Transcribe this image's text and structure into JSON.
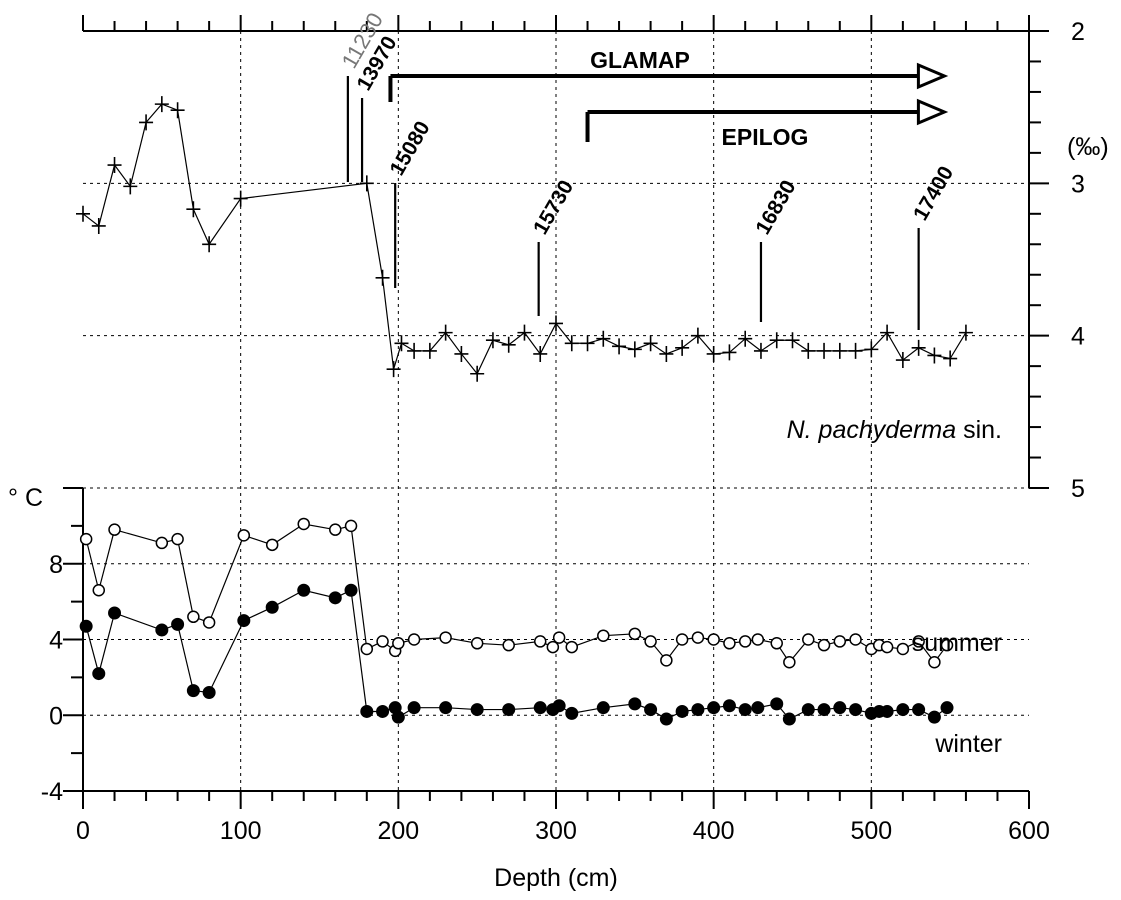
{
  "chart_data": {
    "type": "line",
    "x_axis": {
      "label": "Depth (cm)",
      "range": [
        0,
        600
      ],
      "ticks": [
        0,
        100,
        200,
        300,
        400,
        500,
        600
      ]
    },
    "right_axis": {
      "unit": "(‰)",
      "range": [
        2,
        5
      ],
      "reversed": true,
      "ticks": [
        2,
        3,
        4,
        5
      ]
    },
    "left_axis": {
      "unit": "° C",
      "range": [
        -4,
        12
      ],
      "ticks": [
        -4,
        0,
        4,
        8
      ]
    },
    "grid": true,
    "series": [
      {
        "name": "N. pachyderma sin.",
        "name_italic": "N. pachyderma",
        "name_suffix": " sin.",
        "axis": "right",
        "marker": "plus",
        "points": [
          [
            0,
            3.2
          ],
          [
            10,
            3.28
          ],
          [
            20,
            2.88
          ],
          [
            30,
            3.02
          ],
          [
            40,
            2.6
          ],
          [
            50,
            2.48
          ],
          [
            60,
            2.52
          ],
          [
            70,
            3.17
          ],
          [
            80,
            3.4
          ],
          [
            100,
            3.1
          ],
          [
            180,
            3.0
          ],
          [
            190,
            3.62
          ],
          [
            197,
            4.22
          ],
          [
            202,
            4.05
          ],
          [
            210,
            4.1
          ],
          [
            220,
            4.1
          ],
          [
            230,
            3.98
          ],
          [
            240,
            4.12
          ],
          [
            250,
            4.25
          ],
          [
            260,
            4.03
          ],
          [
            270,
            4.06
          ],
          [
            280,
            3.98
          ],
          [
            290,
            4.12
          ],
          [
            300,
            3.92
          ],
          [
            310,
            4.05
          ],
          [
            320,
            4.05
          ],
          [
            330,
            4.02
          ],
          [
            340,
            4.07
          ],
          [
            350,
            4.09
          ],
          [
            360,
            4.05
          ],
          [
            370,
            4.12
          ],
          [
            380,
            4.08
          ],
          [
            390,
            4.0
          ],
          [
            400,
            4.12
          ],
          [
            410,
            4.11
          ],
          [
            420,
            4.02
          ],
          [
            430,
            4.1
          ],
          [
            440,
            4.03
          ],
          [
            450,
            4.03
          ],
          [
            460,
            4.1
          ],
          [
            470,
            4.1
          ],
          [
            480,
            4.1
          ],
          [
            490,
            4.1
          ],
          [
            500,
            4.09
          ],
          [
            510,
            3.98
          ],
          [
            520,
            4.16
          ],
          [
            530,
            4.08
          ],
          [
            540,
            4.13
          ],
          [
            550,
            4.15
          ],
          [
            560,
            3.98
          ]
        ]
      },
      {
        "name": "summer",
        "axis": "left",
        "marker": "open-circle",
        "points": [
          [
            2,
            9.3
          ],
          [
            10,
            6.6
          ],
          [
            20,
            9.8
          ],
          [
            50,
            9.1
          ],
          [
            60,
            9.3
          ],
          [
            70,
            5.2
          ],
          [
            80,
            4.9
          ],
          [
            102,
            9.5
          ],
          [
            120,
            9.0
          ],
          [
            140,
            10.1
          ],
          [
            160,
            9.8
          ],
          [
            170,
            10.0
          ],
          [
            180,
            3.5
          ],
          [
            190,
            3.9
          ],
          [
            198,
            3.4
          ],
          [
            200,
            3.8
          ],
          [
            210,
            4.0
          ],
          [
            230,
            4.1
          ],
          [
            250,
            3.8
          ],
          [
            270,
            3.7
          ],
          [
            290,
            3.9
          ],
          [
            298,
            3.6
          ],
          [
            302,
            4.1
          ],
          [
            310,
            3.6
          ],
          [
            330,
            4.2
          ],
          [
            350,
            4.3
          ],
          [
            360,
            3.9
          ],
          [
            370,
            2.9
          ],
          [
            380,
            4.0
          ],
          [
            390,
            4.1
          ],
          [
            400,
            4.0
          ],
          [
            410,
            3.8
          ],
          [
            420,
            3.9
          ],
          [
            428,
            4.0
          ],
          [
            440,
            3.8
          ],
          [
            448,
            2.8
          ],
          [
            460,
            4.0
          ],
          [
            470,
            3.7
          ],
          [
            480,
            3.9
          ],
          [
            490,
            4.0
          ],
          [
            500,
            3.5
          ],
          [
            505,
            3.7
          ],
          [
            510,
            3.6
          ],
          [
            520,
            3.5
          ],
          [
            530,
            3.9
          ],
          [
            540,
            2.8
          ],
          [
            548,
            3.7
          ]
        ]
      },
      {
        "name": "winter",
        "axis": "left",
        "marker": "filled-circle",
        "points": [
          [
            2,
            4.7
          ],
          [
            10,
            2.2
          ],
          [
            20,
            5.4
          ],
          [
            50,
            4.5
          ],
          [
            60,
            4.8
          ],
          [
            70,
            1.3
          ],
          [
            80,
            1.2
          ],
          [
            102,
            5.0
          ],
          [
            120,
            5.7
          ],
          [
            140,
            6.6
          ],
          [
            160,
            6.2
          ],
          [
            170,
            6.6
          ],
          [
            180,
            0.2
          ],
          [
            190,
            0.2
          ],
          [
            198,
            0.4
          ],
          [
            200,
            -0.1
          ],
          [
            210,
            0.4
          ],
          [
            230,
            0.4
          ],
          [
            250,
            0.3
          ],
          [
            270,
            0.3
          ],
          [
            290,
            0.4
          ],
          [
            298,
            0.3
          ],
          [
            302,
            0.5
          ],
          [
            310,
            0.1
          ],
          [
            330,
            0.4
          ],
          [
            350,
            0.6
          ],
          [
            360,
            0.3
          ],
          [
            370,
            -0.2
          ],
          [
            380,
            0.2
          ],
          [
            390,
            0.3
          ],
          [
            400,
            0.4
          ],
          [
            410,
            0.5
          ],
          [
            420,
            0.3
          ],
          [
            428,
            0.4
          ],
          [
            440,
            0.6
          ],
          [
            448,
            -0.2
          ],
          [
            460,
            0.3
          ],
          [
            470,
            0.3
          ],
          [
            480,
            0.4
          ],
          [
            490,
            0.3
          ],
          [
            500,
            0.1
          ],
          [
            505,
            0.2
          ],
          [
            510,
            0.2
          ],
          [
            520,
            0.3
          ],
          [
            530,
            0.3
          ],
          [
            540,
            -0.1
          ],
          [
            548,
            0.4
          ]
        ]
      }
    ],
    "age_markers": [
      {
        "label": "11230",
        "depth": 168,
        "style": "gray"
      },
      {
        "label": "13970",
        "depth": 177,
        "style": "bold"
      },
      {
        "label": "15080",
        "depth": 198,
        "style": "bold"
      },
      {
        "label": "15730",
        "depth": 289,
        "style": "bold"
      },
      {
        "label": "16830",
        "depth": 430,
        "style": "bold"
      },
      {
        "label": "17400",
        "depth": 530,
        "style": "bold"
      }
    ],
    "range_arrows": [
      {
        "label": "GLAMAP",
        "from": 195,
        "to": 540
      },
      {
        "label": "EPILOG",
        "from": 320,
        "to": 540
      }
    ]
  }
}
